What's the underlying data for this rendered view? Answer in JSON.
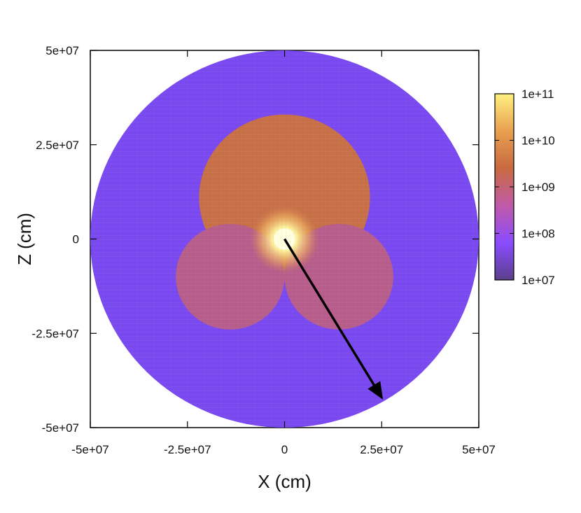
{
  "chart_data": {
    "type": "heatmap",
    "title": "",
    "xlabel": "X (cm)",
    "ylabel": "Z (cm)",
    "xlim": [
      -50000000,
      50000000
    ],
    "ylim": [
      -50000000,
      50000000
    ],
    "x_ticks": [
      {
        "value": -50000000,
        "label": "-5e+07"
      },
      {
        "value": -25000000,
        "label": "-2.5e+07"
      },
      {
        "value": 0,
        "label": "0"
      },
      {
        "value": 25000000,
        "label": "2.5e+07"
      },
      {
        "value": 50000000,
        "label": "5e+07"
      }
    ],
    "y_ticks": [
      {
        "value": 50000000,
        "label": "5e+07"
      },
      {
        "value": 25000000,
        "label": "2.5e+07"
      },
      {
        "value": 0,
        "label": "0"
      },
      {
        "value": -25000000,
        "label": "-2.5e+07"
      },
      {
        "value": -50000000,
        "label": "-5e+07"
      }
    ],
    "colorbar": {
      "scale": "log",
      "range": [
        10000000,
        100000000000
      ],
      "ticks": [
        {
          "value": 100000000000,
          "label": "1e+11"
        },
        {
          "value": 10000000000,
          "label": "1e+10"
        },
        {
          "value": 1000000000,
          "label": "1e+09"
        },
        {
          "value": 100000000,
          "label": "1e+08"
        },
        {
          "value": 10000000,
          "label": "1e+07"
        }
      ],
      "colors": [
        "#5a3f8a",
        "#8a4cff",
        "#c05aa8",
        "#c86a40",
        "#e8a050",
        "#fff080"
      ]
    },
    "regions": [
      {
        "name": "outer-disk",
        "radius": 50000000,
        "color": "#7a4af0"
      },
      {
        "name": "upper-lobe",
        "radius": 22000000,
        "center": [
          0,
          11000000
        ],
        "color": "#c87048"
      },
      {
        "name": "lower-left-lobe",
        "radius": 14000000,
        "center": [
          -14000000,
          -10000000
        ],
        "color": "#b85e8c"
      },
      {
        "name": "lower-right-lobe",
        "radius": 14000000,
        "center": [
          14000000,
          -10000000
        ],
        "color": "#b85e8c"
      },
      {
        "name": "inner-core",
        "radius": 2800000,
        "center": [
          0,
          0
        ],
        "color": "#ffffe0"
      }
    ],
    "annotation_arrow": {
      "from": [
        0,
        0
      ],
      "to": [
        25000000,
        -42000000
      ],
      "color": "#000000"
    }
  }
}
